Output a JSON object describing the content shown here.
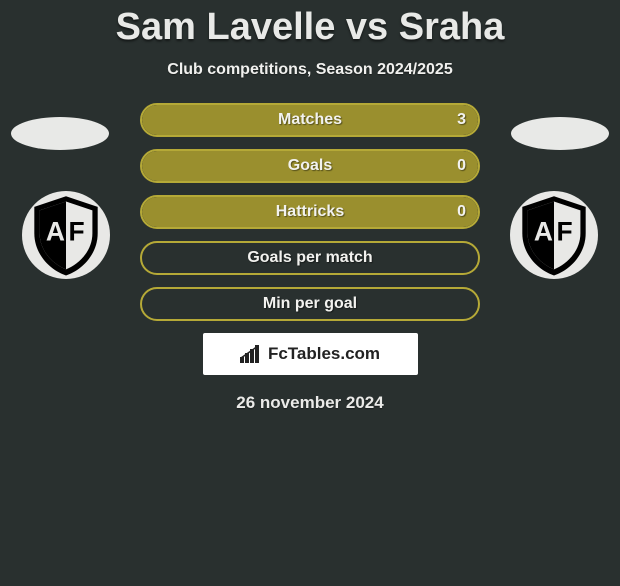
{
  "header": {
    "title": "Sam Lavelle vs Sraha",
    "subtitle": "Club competitions, Season 2024/2025"
  },
  "colors": {
    "background": "#29302f",
    "olive": "#9a8f2e",
    "olive_border": "#b5a937",
    "white": "#e8e9e7",
    "shield_black": "#000000",
    "shield_white": "#e8e8e6"
  },
  "rows": [
    {
      "label": "Matches",
      "left_value": "",
      "right_value": "3",
      "fill_pct": 91,
      "fill_color": "#9a8f2e",
      "border_color": "#b5a937",
      "right_cell_color": "#9a8f2e",
      "right_cell_pct": 9
    },
    {
      "label": "Goals",
      "left_value": "",
      "right_value": "0",
      "fill_pct": 91,
      "fill_color": "#9a8f2e",
      "border_color": "#b5a937",
      "right_cell_color": "#9a8f2e",
      "right_cell_pct": 9
    },
    {
      "label": "Hattricks",
      "left_value": "",
      "right_value": "0",
      "fill_pct": 91,
      "fill_color": "#9a8f2e",
      "border_color": "#b5a937",
      "right_cell_color": "#9a8f2e",
      "right_cell_pct": 9
    },
    {
      "label": "Goals per match",
      "left_value": "",
      "right_value": "",
      "fill_pct": 0,
      "fill_color": "transparent",
      "border_color": "#b5a937",
      "right_cell_color": "transparent",
      "right_cell_pct": 0
    },
    {
      "label": "Min per goal",
      "left_value": "",
      "right_value": "",
      "fill_pct": 0,
      "fill_color": "transparent",
      "border_color": "#b5a937",
      "right_cell_color": "transparent",
      "right_cell_pct": 0
    }
  ],
  "brand": {
    "icon": "bar-chart-icon",
    "text": "FcTables.com"
  },
  "date": "26 november 2024"
}
